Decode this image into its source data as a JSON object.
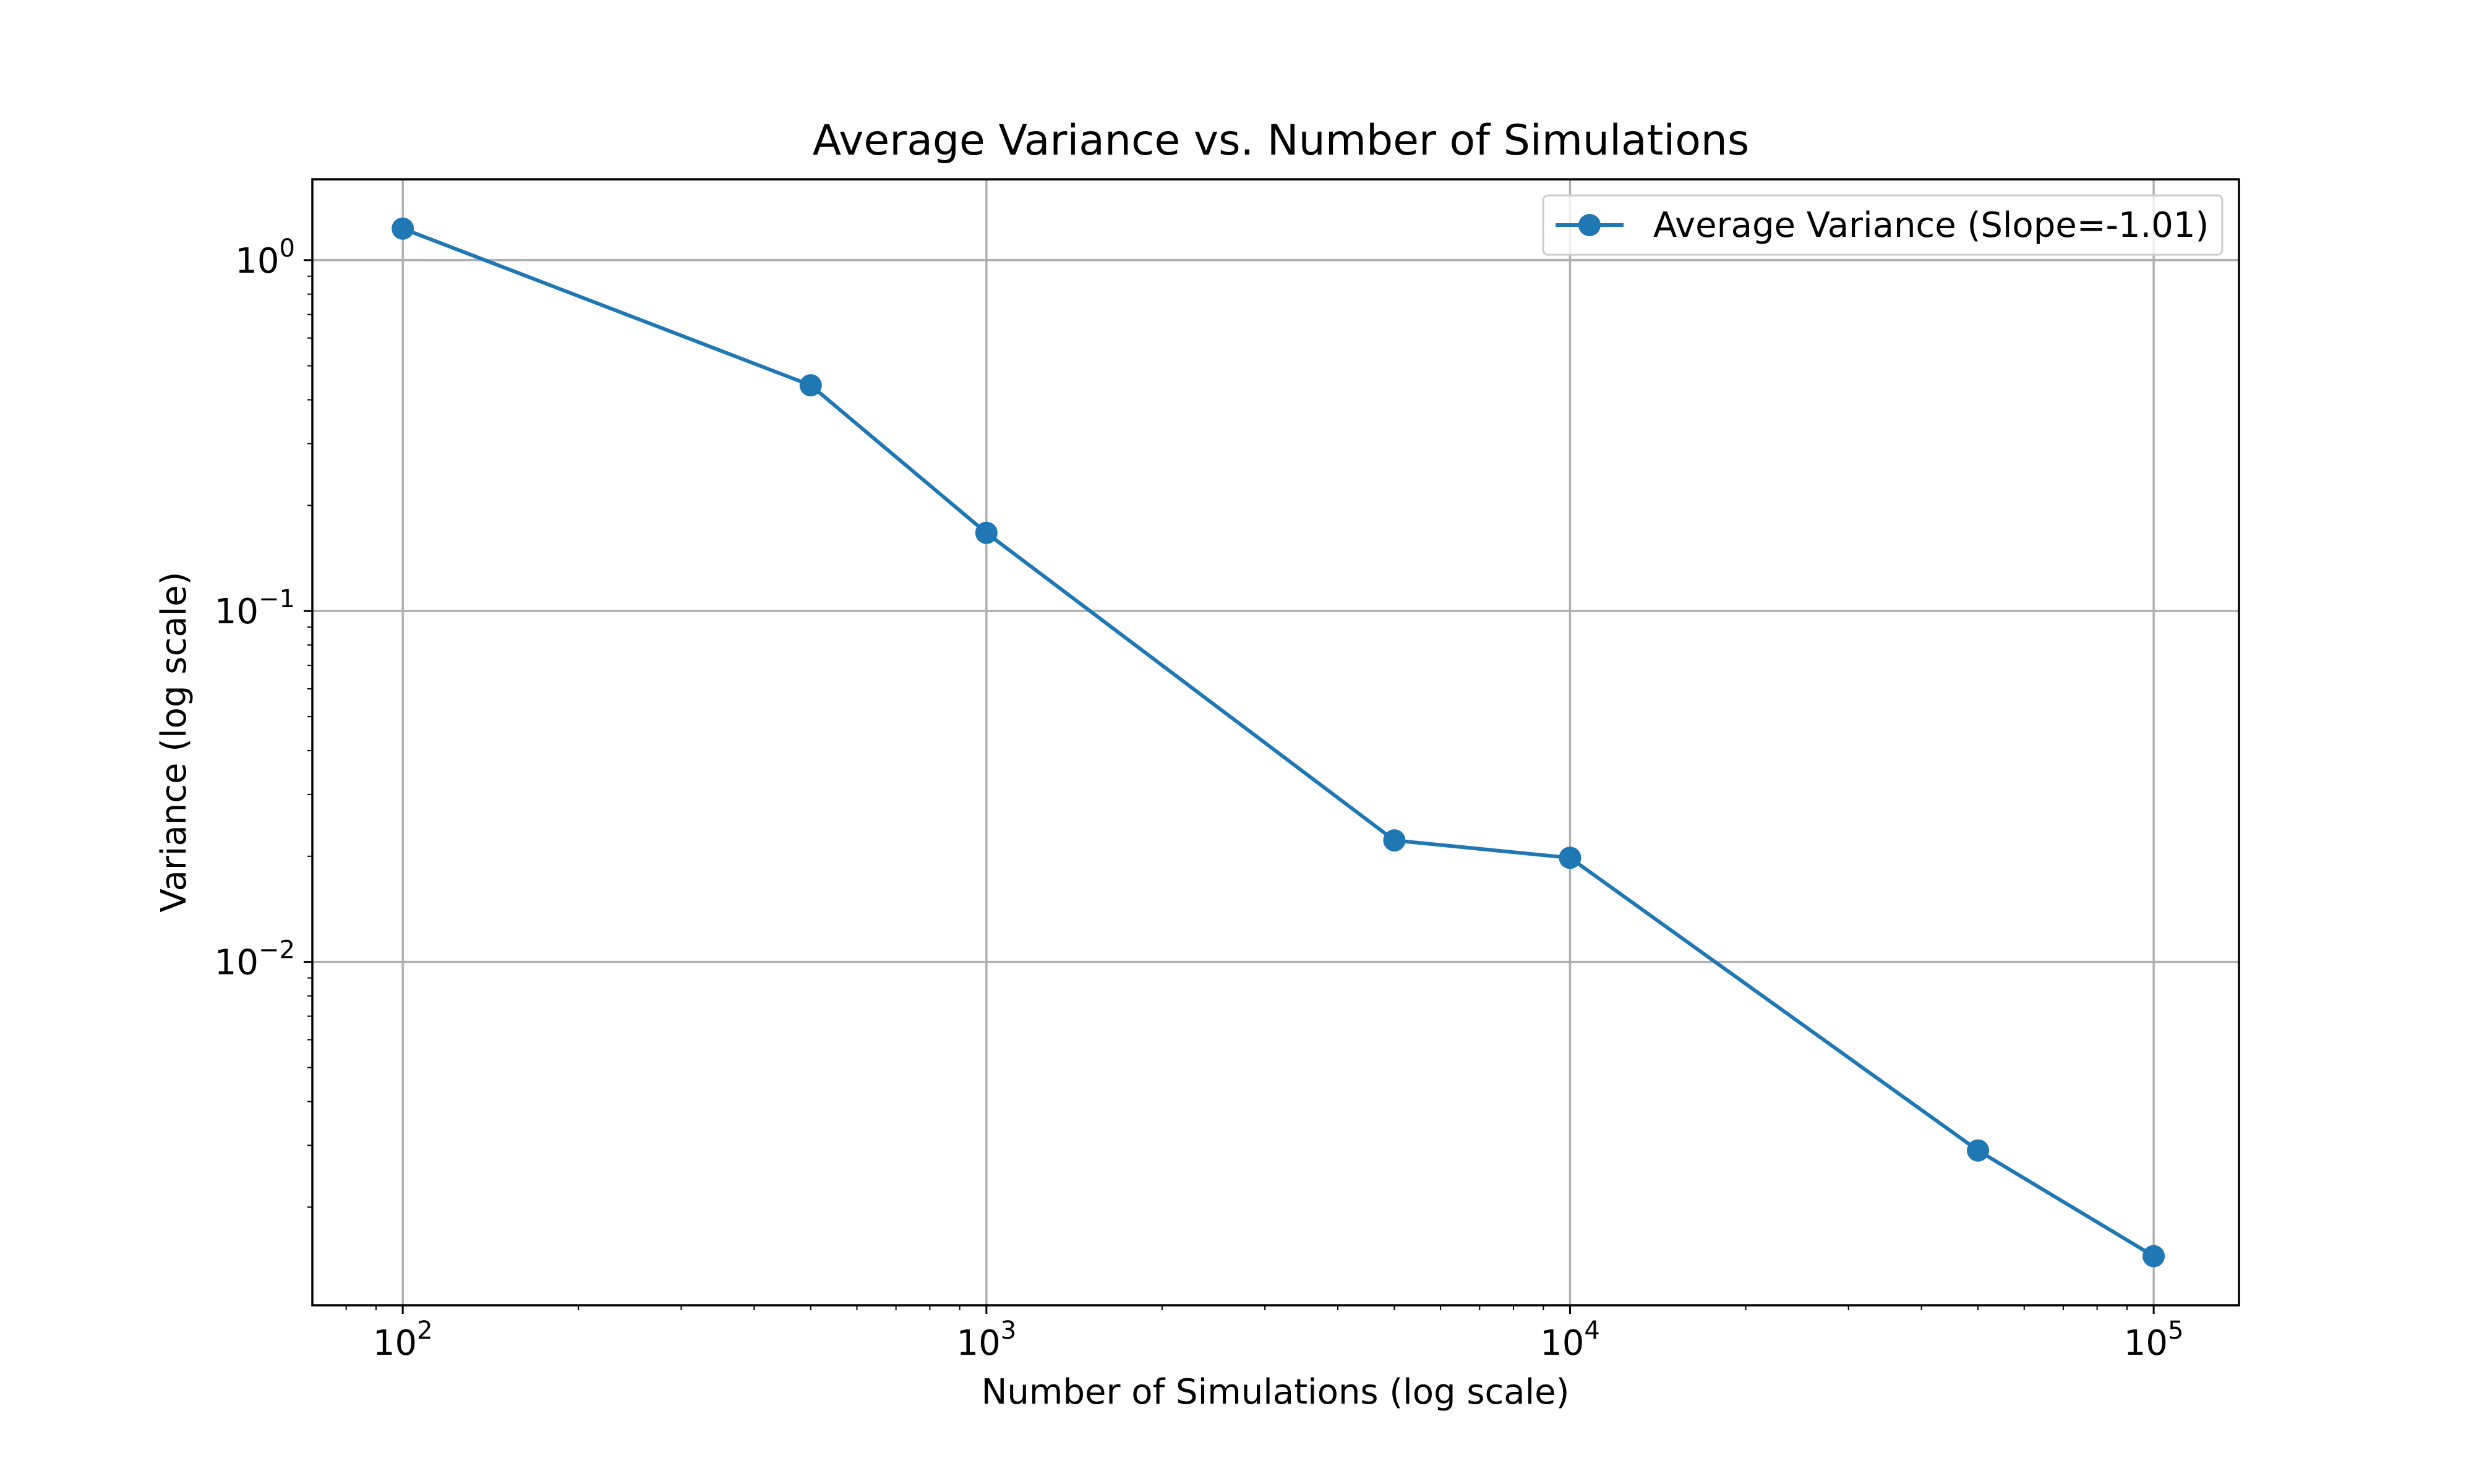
{
  "chart_data": {
    "type": "line",
    "title": "Average Variance vs. Number of Simulations",
    "xlabel": "Number of Simulations (log scale)",
    "ylabel": "Variance (log scale)",
    "x_scale": "log",
    "y_scale": "log",
    "xlim": [
      70,
      140000
    ],
    "ylim": [
      0.00105,
      1.7
    ],
    "grid": true,
    "legend_position": "top-right",
    "x_ticks": [
      {
        "base": "10",
        "exp": "2",
        "value": 100
      },
      {
        "base": "10",
        "exp": "3",
        "value": 1000
      },
      {
        "base": "10",
        "exp": "4",
        "value": 10000
      },
      {
        "base": "10",
        "exp": "5",
        "value": 100000
      }
    ],
    "y_ticks": [
      {
        "base": "10",
        "exp": "0",
        "value": 1
      },
      {
        "base": "10",
        "exp": "−1",
        "value": 0.1
      },
      {
        "base": "10",
        "exp": "−2",
        "value": 0.01
      }
    ],
    "series": [
      {
        "name": "Average Variance (Slope=-1.01)",
        "color": "#1f77b4",
        "marker": "circle",
        "x": [
          100,
          500,
          1000,
          5000,
          10000,
          50000,
          100000
        ],
        "y": [
          1.23,
          0.44,
          0.167,
          0.0222,
          0.0198,
          0.0029,
          0.00145
        ]
      }
    ]
  },
  "colors": {
    "series": "#1f77b4",
    "grid": "#b0b0b0",
    "axes": "#000000",
    "background": "#ffffff"
  }
}
